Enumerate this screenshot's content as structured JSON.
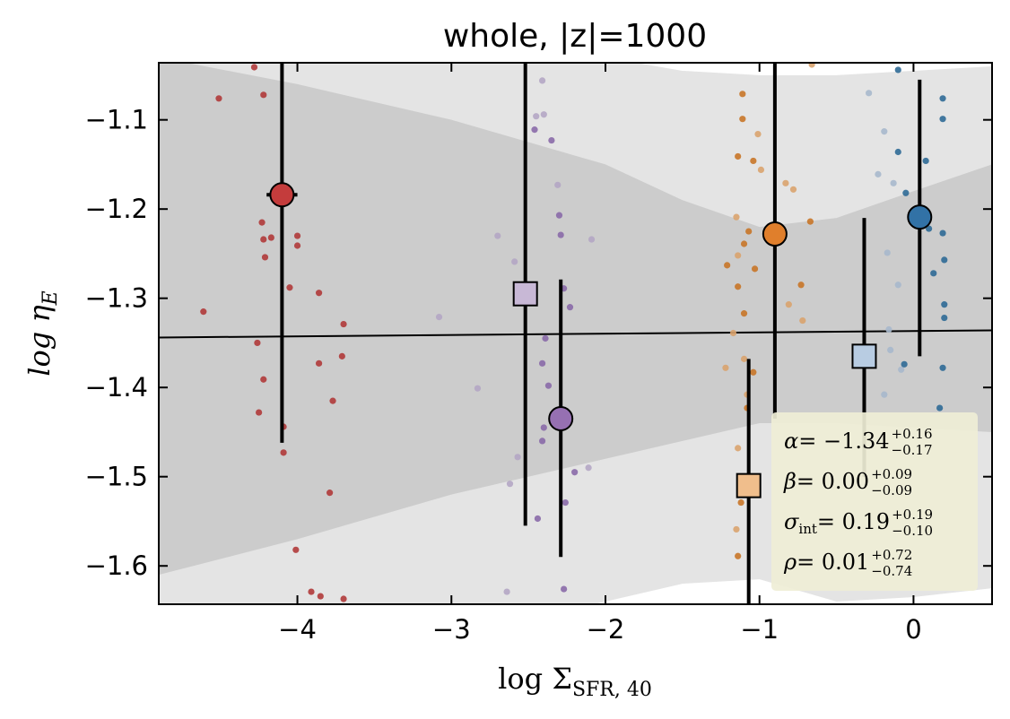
{
  "chart_data": {
    "type": "scatter",
    "title": "whole, |z|=1000",
    "xlabel": {
      "text": "log Σ",
      "sub": "SFR, 40"
    },
    "ylabel": {
      "text": "log η",
      "sub": "E"
    },
    "xlim": [
      -4.9,
      0.51
    ],
    "ylim": [
      -1.643,
      -1.036
    ],
    "xticks": [
      {
        "value": -4,
        "label": "−4"
      },
      {
        "value": -3,
        "label": "−3"
      },
      {
        "value": -2,
        "label": "−2"
      },
      {
        "value": -1,
        "label": "−1"
      },
      0
    ],
    "yticks": [
      {
        "value": -1.1,
        "label": "−1.1"
      },
      {
        "value": -1.2,
        "label": "−1.2"
      },
      {
        "value": -1.3,
        "label": "−1.3"
      },
      {
        "value": -1.4,
        "label": "−1.4"
      },
      {
        "value": -1.5,
        "label": "−1.5"
      },
      {
        "value": -1.6,
        "label": "−1.6"
      }
    ],
    "bands": [
      {
        "color": "#e4e4e4",
        "x": [
          -4.9,
          -4,
          -3,
          -2,
          -1.5,
          -1,
          -0.5,
          0,
          0.51
        ],
        "upper": [
          -0.9,
          -0.95,
          -0.99,
          -1.03,
          -1.045,
          -1.05,
          -1.05,
          -1.045,
          -1.04
        ],
        "lower": [
          -1.75,
          -1.72,
          -1.68,
          -1.64,
          -1.62,
          -1.615,
          -1.64,
          -1.635,
          -1.625
        ]
      },
      {
        "color": "#cccccc",
        "x": [
          -4.9,
          -4,
          -3,
          -2,
          -1.5,
          -1,
          -0.5,
          0,
          0.51
        ],
        "upper": [
          -1.03,
          -1.06,
          -1.1,
          -1.15,
          -1.19,
          -1.22,
          -1.21,
          -1.18,
          -1.15
        ],
        "lower": [
          -1.61,
          -1.57,
          -1.52,
          -1.48,
          -1.46,
          -1.44,
          -1.44,
          -1.445,
          -1.45
        ]
      }
    ],
    "fit": {
      "color": "#000000",
      "x": [
        -4.9,
        0.51
      ],
      "y": [
        -1.344,
        -1.336
      ]
    },
    "series": [
      {
        "color": "#b03a3a",
        "x": [
          -4.61,
          -4.51,
          -4.28,
          -4.22,
          -4.23,
          -4.22,
          -4.17,
          -4.21,
          -4.26,
          -4.22,
          -4.25,
          -4.0,
          -4.0,
          -4.05,
          -4.09,
          -4.09,
          -3.86,
          -3.86,
          -3.77,
          -3.79,
          -3.7,
          -3.71,
          -4.01,
          -3.91,
          -3.85,
          -3.7
        ],
        "values": [
          -1.315,
          -1.076,
          -1.041,
          -1.072,
          -1.215,
          -1.234,
          -1.232,
          -1.254,
          -1.35,
          -1.391,
          -1.428,
          -1.23,
          -1.241,
          -1.288,
          -1.444,
          -1.473,
          -1.294,
          -1.373,
          -1.415,
          -1.518,
          -1.329,
          -1.365,
          -1.582,
          -1.629,
          -1.634,
          -1.637
        ]
      },
      {
        "color": "#b4a6c4",
        "x": [
          -3.08,
          -2.83,
          -2.7,
          -2.59,
          -2.57,
          -2.62,
          -2.64,
          -2.41,
          -2.45,
          -2.4,
          -2.31,
          -2.09,
          -2.11
        ],
        "values": [
          -1.321,
          -1.401,
          -1.23,
          -1.259,
          -1.478,
          -1.508,
          -1.629,
          -1.056,
          -1.096,
          -1.094,
          -1.173,
          -1.234,
          -1.49
        ]
      },
      {
        "color": "#8a6aa8",
        "x": [
          -2.46,
          -2.35,
          -2.3,
          -2.29,
          -2.27,
          -2.23,
          -2.39,
          -2.41,
          -2.37,
          -2.4,
          -2.41,
          -2.26,
          -2.44,
          -2.27,
          -2.2
        ],
        "values": [
          -1.111,
          -1.123,
          -1.207,
          -1.229,
          -1.289,
          -1.31,
          -1.345,
          -1.373,
          -1.398,
          -1.445,
          -1.46,
          -1.529,
          -1.547,
          -1.626,
          -1.495
        ]
      },
      {
        "color": "#d9a36e",
        "x": [
          -1.15,
          -1.14,
          -1.17,
          -1.1,
          -1.01,
          -0.99,
          -0.83,
          -0.78,
          -0.81,
          -0.72,
          -0.66,
          -1.22,
          -1.08,
          -1.14,
          -1.15
        ],
        "values": [
          -1.209,
          -1.252,
          -1.339,
          -1.368,
          -1.116,
          -1.156,
          -1.171,
          -1.178,
          -1.307,
          -1.325,
          -1.038,
          -1.378,
          -1.408,
          -1.468,
          -1.559
        ]
      },
      {
        "color": "#c87528",
        "x": [
          -1.11,
          -1.11,
          -1.14,
          -1.04,
          -1.07,
          -1.1,
          -1.21,
          -1.03,
          -1.14,
          -1.1,
          -0.73,
          -0.67,
          -1.04,
          -1.08,
          -1.12,
          -1.14
        ],
        "values": [
          -1.071,
          -1.099,
          -1.141,
          -1.146,
          -1.225,
          -1.239,
          -1.263,
          -1.267,
          -1.287,
          -1.317,
          -1.285,
          -1.214,
          -1.383,
          -1.423,
          -1.529,
          -1.589
        ]
      },
      {
        "color": "#a7b8cc",
        "x": [
          -0.29,
          -0.19,
          -0.23,
          -0.13,
          -0.17,
          -0.1,
          -0.16,
          -0.15,
          -0.19,
          -0.08,
          -0.33,
          -0.25
        ],
        "values": [
          -1.07,
          -1.113,
          -1.161,
          -1.171,
          -1.249,
          -1.285,
          -1.335,
          -1.358,
          -1.408,
          -1.38,
          -1.463,
          -1.498
        ]
      },
      {
        "color": "#2f6a96",
        "x": [
          -0.1,
          0.19,
          0.19,
          -0.1,
          0.08,
          -0.05,
          0.1,
          0.19,
          0.2,
          0.13,
          0.2,
          0.2,
          -0.06,
          0.19,
          0.17
        ],
        "values": [
          -1.044,
          -1.076,
          -1.099,
          -1.136,
          -1.146,
          -1.182,
          -1.222,
          -1.227,
          -1.257,
          -1.272,
          -1.307,
          -1.322,
          -1.374,
          -1.378,
          -1.423
        ]
      }
    ],
    "points": [
      {
        "marker": "circle",
        "color": "#c43c3c",
        "x": -4.1,
        "y": -1.184,
        "ylow": -1.462,
        "yhigh": -0.98,
        "xlow": -4.2,
        "xhigh": -4.0
      },
      {
        "marker": "square",
        "color": "#c8b8d6",
        "x": -2.52,
        "y": -1.295,
        "ylow": -1.555,
        "yhigh": -0.98
      },
      {
        "marker": "circle",
        "color": "#9670b2",
        "x": -2.29,
        "y": -1.435,
        "ylow": -1.59,
        "yhigh": -1.279
      },
      {
        "marker": "square",
        "color": "#f0be8c",
        "x": -1.07,
        "y": -1.51,
        "ylow": -1.7,
        "yhigh": -1.368
      },
      {
        "marker": "circle",
        "color": "#e07f2c",
        "x": -0.9,
        "y": -1.228,
        "ylow": -1.435,
        "yhigh": -0.98
      },
      {
        "marker": "square",
        "color": "#b8cce2",
        "x": -0.32,
        "y": -1.365,
        "ylow": -1.5,
        "yhigh": -1.21
      },
      {
        "marker": "circle",
        "color": "#3272a6",
        "x": 0.04,
        "y": -1.209,
        "ylow": -1.365,
        "yhigh": -1.055
      }
    ],
    "annotations": [
      {
        "symbol": "α",
        "value": "= −1.34",
        "plus": "+0.16",
        "minus": "−0.17"
      },
      {
        "symbol": "β",
        "value": "= 0.00",
        "plus": "+0.09",
        "minus": "−0.09"
      },
      {
        "symbol": "σ",
        "symbol_sub": "int",
        "value": "= 0.19",
        "plus": "+0.19",
        "minus": "−0.10"
      },
      {
        "symbol": "ρ",
        "value": "= 0.01",
        "plus": "+0.72",
        "minus": "−0.74"
      }
    ]
  }
}
